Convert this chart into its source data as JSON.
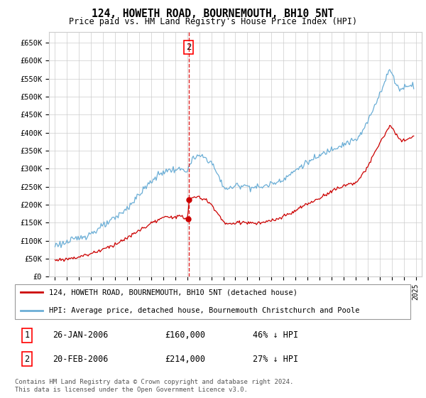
{
  "title": "124, HOWETH ROAD, BOURNEMOUTH, BH10 5NT",
  "subtitle": "Price paid vs. HM Land Registry's House Price Index (HPI)",
  "ylabel_ticks": [
    "£0",
    "£50K",
    "£100K",
    "£150K",
    "£200K",
    "£250K",
    "£300K",
    "£350K",
    "£400K",
    "£450K",
    "£500K",
    "£550K",
    "£600K",
    "£650K"
  ],
  "ytick_values": [
    0,
    50000,
    100000,
    150000,
    200000,
    250000,
    300000,
    350000,
    400000,
    450000,
    500000,
    550000,
    600000,
    650000
  ],
  "ylim": [
    0,
    680000
  ],
  "hpi_color": "#6baed6",
  "price_color": "#cc0000",
  "sale1_date_x": 2006.05,
  "sale1_price": 160000,
  "sale2_date_x": 2006.12,
  "sale2_price": 214000,
  "vline_color": "#dd0000",
  "marker_color": "#cc0000",
  "legend_house": "124, HOWETH ROAD, BOURNEMOUTH, BH10 5NT (detached house)",
  "legend_hpi": "HPI: Average price, detached house, Bournemouth Christchurch and Poole",
  "table_rows": [
    {
      "num": "1",
      "date": "26-JAN-2006",
      "price": "£160,000",
      "pct": "46% ↓ HPI"
    },
    {
      "num": "2",
      "date": "20-FEB-2006",
      "price": "£214,000",
      "pct": "27% ↓ HPI"
    }
  ],
  "footnote": "Contains HM Land Registry data © Crown copyright and database right 2024.\nThis data is licensed under the Open Government Licence v3.0.",
  "background_color": "#ffffff",
  "grid_color": "#cccccc",
  "xtick_years": [
    1995,
    1996,
    1997,
    1998,
    1999,
    2000,
    2001,
    2002,
    2003,
    2004,
    2005,
    2006,
    2007,
    2008,
    2009,
    2010,
    2011,
    2012,
    2013,
    2014,
    2015,
    2016,
    2017,
    2018,
    2019,
    2020,
    2021,
    2022,
    2023,
    2024,
    2025
  ],
  "xlim": [
    1994.5,
    2025.5
  ]
}
